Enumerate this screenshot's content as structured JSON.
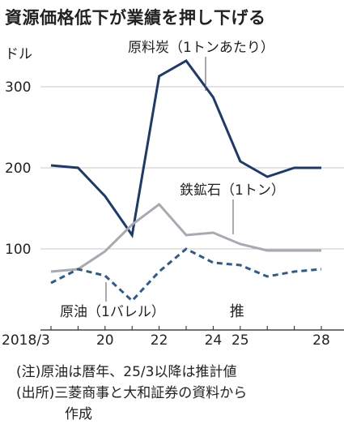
{
  "title": "資源価格低下が業績を押し下げる",
  "notes": {
    "note1": "(注)原油は暦年、25/3以降は推計値",
    "note2a": "(出所)三菱商事と大和証券の資料から",
    "note2b": "作成"
  },
  "chart_data": {
    "type": "line",
    "unit_label": "ドル",
    "ylim": [
      0,
      350
    ],
    "y_ticks": [
      100,
      200,
      300
    ],
    "y_tick_labels": [
      "100",
      "200",
      "300"
    ],
    "x": [
      18,
      19,
      20,
      21,
      22,
      23,
      24,
      25,
      26,
      27,
      28
    ],
    "x_ticks": [
      18,
      20,
      22,
      24,
      25,
      28
    ],
    "x_tick_labels": [
      "2018/3",
      "20",
      "22",
      "24",
      "25",
      "28"
    ],
    "estimate_label": "推",
    "series": [
      {
        "name": "原料炭（1トンあたり）",
        "color": "#1c3a6b",
        "style": "solid",
        "values": [
          203,
          200,
          165,
          117,
          313,
          332,
          287,
          208,
          189,
          200,
          200
        ]
      },
      {
        "name": "鉄鉱石（1トン）",
        "color": "#a6aab2",
        "style": "solid",
        "values": [
          72,
          75,
          97,
          130,
          155,
          117,
          120,
          106,
          98,
          98,
          98
        ]
      },
      {
        "name": "原油（1バレル）",
        "color": "#2d5c8c",
        "style": "dashed",
        "values": [
          58,
          75,
          67,
          36,
          72,
          100,
          83,
          80,
          66,
          72,
          75
        ]
      }
    ]
  }
}
